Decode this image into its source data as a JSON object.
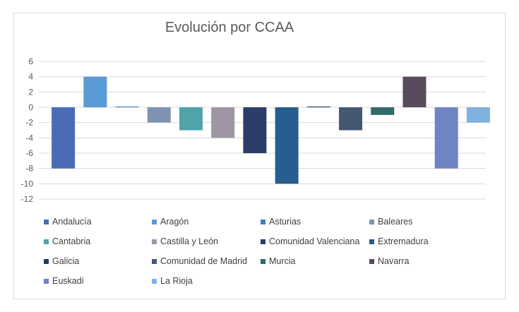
{
  "chart_data": {
    "type": "bar",
    "title": "Evolución por CCAA",
    "xlabel": "",
    "ylabel": "",
    "ylim": [
      -12,
      6
    ],
    "yticks": [
      6,
      4,
      2,
      0,
      -2,
      -4,
      -6,
      -8,
      -10,
      -12
    ],
    "grid": true,
    "legend_position": "bottom",
    "categories": [
      "Andalucía",
      "Aragón",
      "Asturias",
      "Baleares",
      "Cantabria",
      "Castilla y León",
      "Comunidad Valenciana",
      "Extremadura",
      "Galicia",
      "Comunidad de Madrid",
      "Murcia",
      "Navarra",
      "Euskadi",
      "La Rioja"
    ],
    "values": [
      -8,
      4,
      0.1,
      -2,
      -3,
      -4,
      -6,
      -10,
      0.1,
      -3,
      -1,
      4,
      -8,
      -2
    ],
    "colors": [
      "#4a6cb6",
      "#5b9bd5",
      "#3a7fc6",
      "#7f92b1",
      "#4fa3a9",
      "#a095a4",
      "#2c3d6b",
      "#265e8f",
      "#1f3a68",
      "#445873",
      "#2f6b6b",
      "#5a4a5e",
      "#6f84c4",
      "#7fb2df"
    ]
  }
}
